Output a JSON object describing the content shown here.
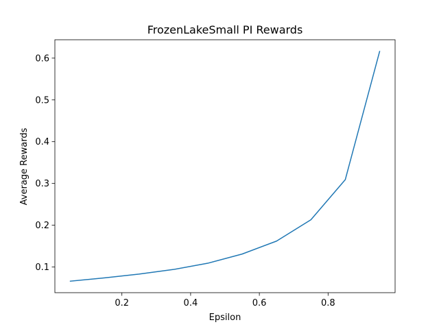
{
  "chart_data": {
    "type": "line",
    "title": "FrozenLakeSmall PI Rewards",
    "xlabel": "Epsilon",
    "ylabel": "Average Rewards",
    "xlim": [
      0.005,
      0.995
    ],
    "ylim": [
      0.0385,
      0.644
    ],
    "xticks": [
      0.2,
      0.4,
      0.6,
      0.8
    ],
    "xtick_labels": [
      "0.2",
      "0.4",
      "0.6",
      "0.8"
    ],
    "yticks": [
      0.1,
      0.2,
      0.3,
      0.4,
      0.5,
      0.6
    ],
    "ytick_labels": [
      "0.1",
      "0.2",
      "0.3",
      "0.4",
      "0.5",
      "0.6"
    ],
    "grid": false,
    "series": [
      {
        "color": "#1f77b4",
        "x": [
          0.05,
          0.15,
          0.25,
          0.35,
          0.45,
          0.55,
          0.65,
          0.75,
          0.85,
          0.95
        ],
        "values": [
          0.066,
          0.074,
          0.083,
          0.094,
          0.109,
          0.131,
          0.162,
          0.213,
          0.309,
          0.616
        ]
      }
    ]
  }
}
